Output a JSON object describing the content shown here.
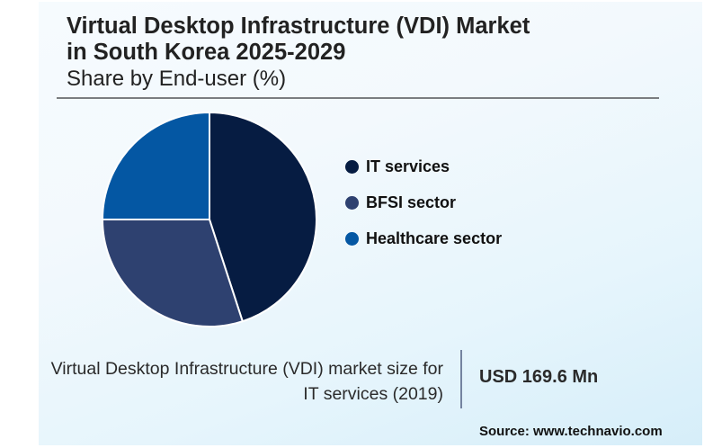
{
  "header": {
    "title_line1": "Virtual Desktop Infrastructure (VDI) Market",
    "title_line2": "in South Korea 2025-2029",
    "subtitle": "Share by End-user (%)"
  },
  "chart_data": {
    "type": "pie",
    "title": "Virtual Desktop Infrastructure (VDI) Market in South Korea 2025-2029",
    "subtitle": "Share by End-user (%)",
    "categories": [
      "IT services",
      "BFSI sector",
      "Healthcare sector"
    ],
    "values": [
      45,
      30,
      25
    ],
    "unit": "%",
    "colors": [
      "#061c42",
      "#2e4170",
      "#0457a3"
    ],
    "start_angle": "12 o'clock",
    "direction": "clockwise",
    "data_labels_shown": false,
    "legend_placement": "right"
  },
  "legend": {
    "items": [
      {
        "label": "IT services",
        "color": "#061c42"
      },
      {
        "label": "BFSI sector",
        "color": "#2e4170"
      },
      {
        "label": "Healthcare sector",
        "color": "#0457a3"
      }
    ]
  },
  "stat": {
    "label_line1": "Virtual Desktop Infrastructure (VDI) market size for",
    "label_line2": "IT services (2019)",
    "value": "USD 169.6 Mn"
  },
  "footer": {
    "source": "Source: www.technavio.com"
  }
}
